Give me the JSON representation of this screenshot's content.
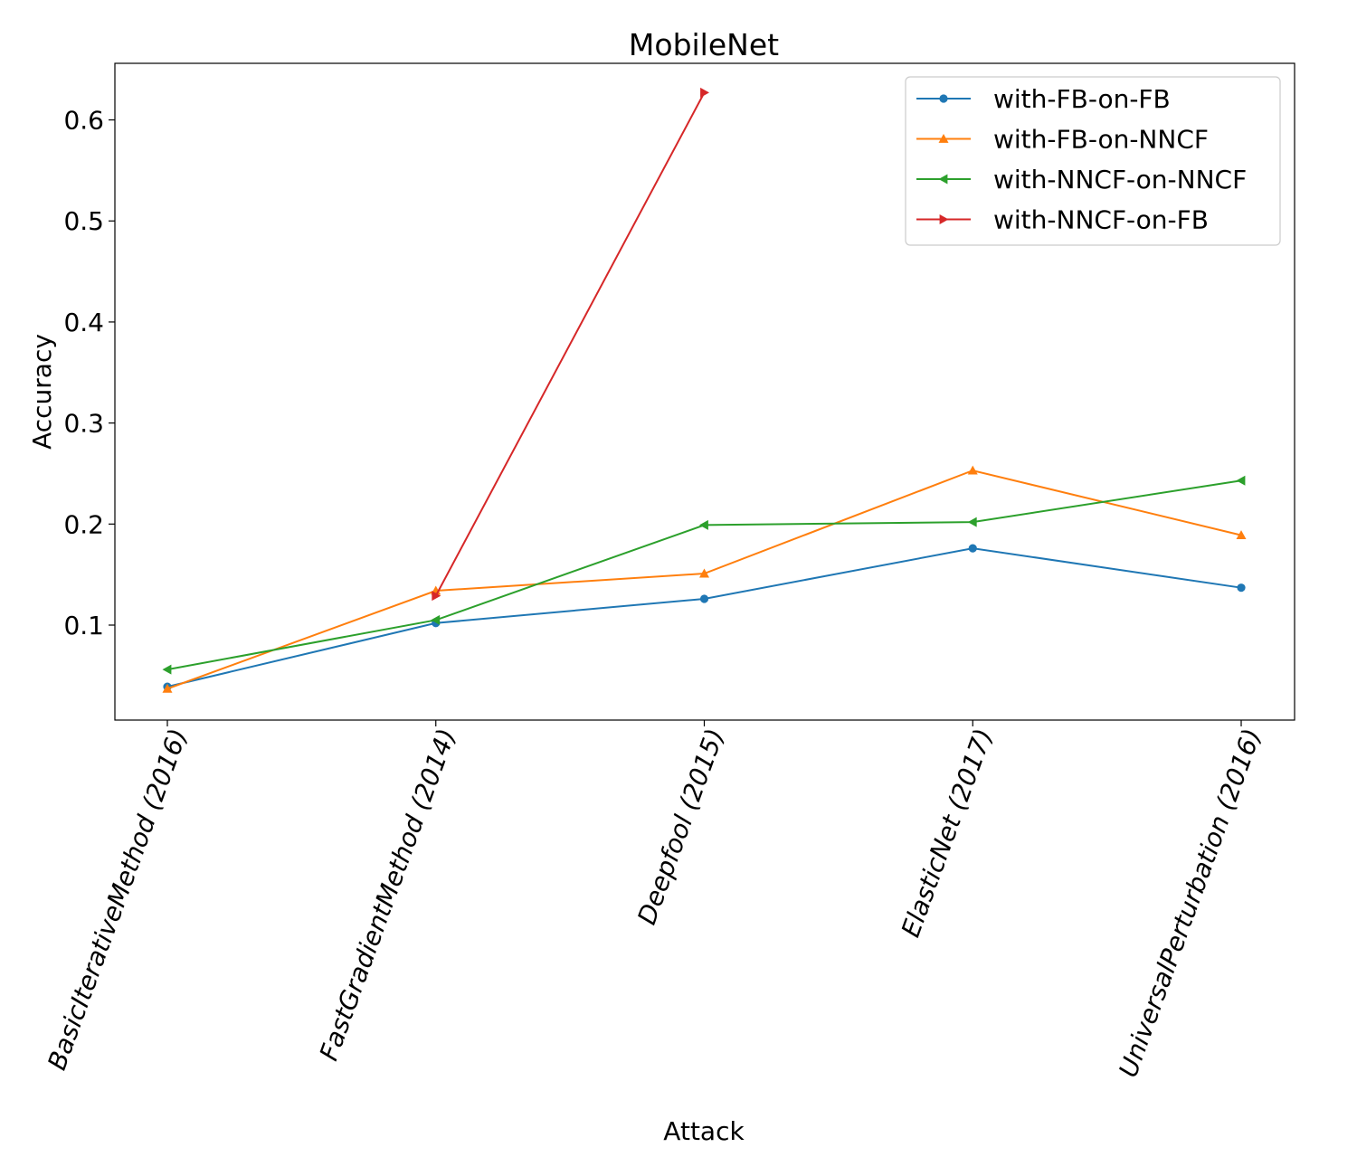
{
  "chart_data": {
    "type": "line",
    "title": "MobileNet",
    "xlabel": "Attack",
    "ylabel": "Accuracy",
    "categories": [
      "BasicIterativeMethod (2016)",
      "FastGradientMethod (2014)",
      "Deepfool (2015)",
      "ElasticNet (2017)",
      "UniversalPerturbation (2016)"
    ],
    "ylim": [
      0.006,
      0.656
    ],
    "yticks": [
      0.1,
      0.2,
      0.3,
      0.4,
      0.5,
      0.6
    ],
    "ytick_labels": [
      "0.1",
      "0.2",
      "0.3",
      "0.4",
      "0.5",
      "0.6"
    ],
    "grid": false,
    "legend_position": "top-right",
    "series": [
      {
        "name": "with-FB-on-FB",
        "color": "#1f77b4",
        "marker": "circle",
        "values": [
          0.039,
          0.102,
          0.126,
          0.176,
          0.137
        ]
      },
      {
        "name": "with-FB-on-NNCF",
        "color": "#ff7f0e",
        "marker": "triangle-up",
        "values": [
          0.037,
          0.134,
          0.151,
          0.253,
          0.189
        ]
      },
      {
        "name": "with-NNCF-on-NNCF",
        "color": "#2ca02c",
        "marker": "triangle-left",
        "values": [
          0.056,
          0.105,
          0.199,
          0.202,
          0.243
        ]
      },
      {
        "name": "with-NNCF-on-FB",
        "color": "#d62728",
        "marker": "triangle-right",
        "values": [
          null,
          0.129,
          0.627,
          null,
          null
        ]
      }
    ]
  }
}
